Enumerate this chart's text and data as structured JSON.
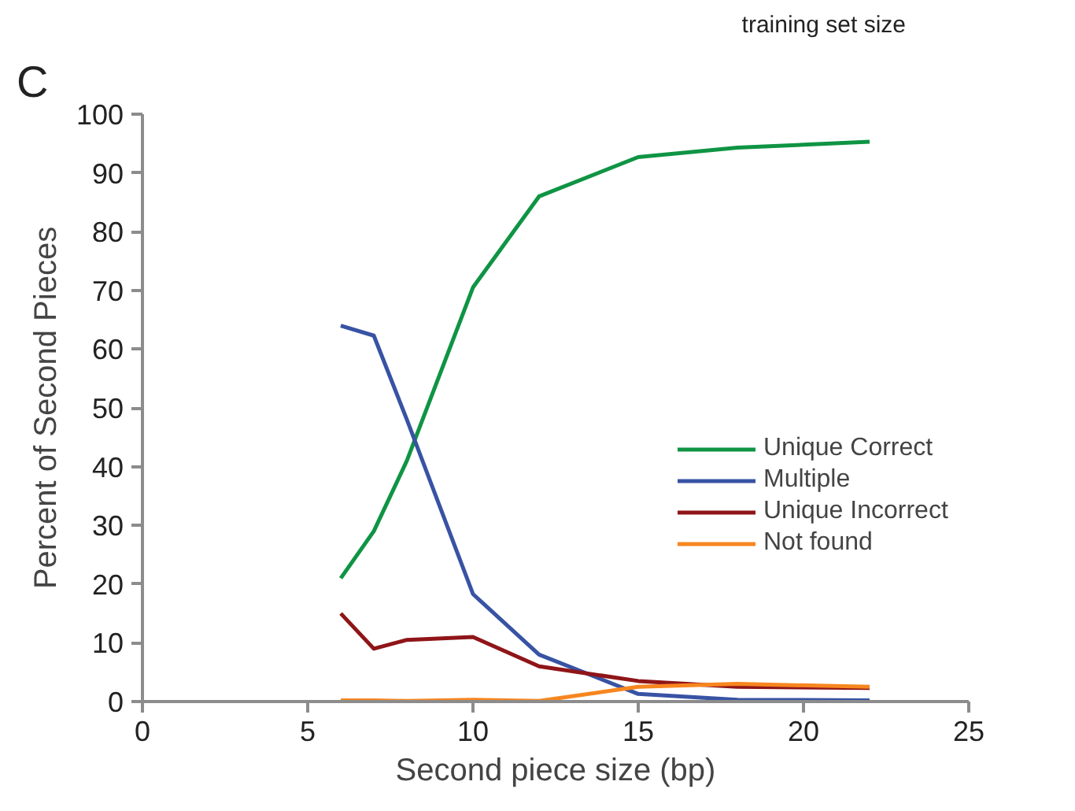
{
  "chart_data": {
    "type": "line",
    "xlabel": "Second piece size (bp)",
    "ylabel": "Percent of Second Pieces",
    "annotations": [
      "C",
      "training set size"
    ],
    "x": [
      6,
      7,
      8,
      10,
      12,
      15,
      18,
      22
    ],
    "series": [
      {
        "name": "Unique Correct",
        "color": "#0f9444",
        "values": [
          21,
          29,
          41,
          70.5,
          86,
          92.7,
          94.3,
          95.3
        ]
      },
      {
        "name": "Multiple",
        "color": "#3853a4",
        "values": [
          64,
          62.3,
          48,
          18.3,
          8,
          1.3,
          0.3,
          0.2
        ]
      },
      {
        "name": "Unique Incorrect",
        "color": "#8f1518",
        "values": [
          15,
          9,
          10.5,
          11,
          6,
          3.5,
          2.5,
          2.3
        ]
      },
      {
        "name": "Not found",
        "color": "#f7861f",
        "values": [
          0.2,
          0.2,
          0.1,
          0.3,
          0.1,
          2.5,
          3,
          2.5
        ]
      }
    ],
    "xlim": [
      0,
      25
    ],
    "xticks": [
      0,
      5,
      10,
      15,
      20,
      25
    ],
    "ylim": [
      0,
      100
    ],
    "yticks": [
      0,
      10,
      20,
      30,
      40,
      50,
      60,
      70,
      80,
      90,
      100
    ],
    "grid": false,
    "legend": "right",
    "marker": "none",
    "line_style": "solid"
  }
}
